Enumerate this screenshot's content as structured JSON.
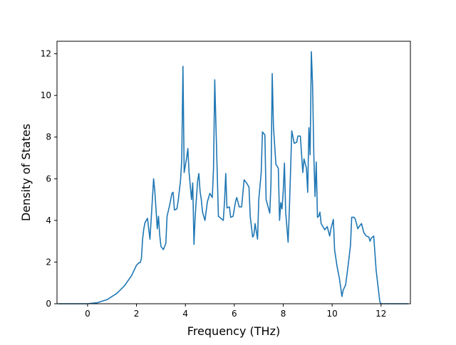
{
  "chart_data": {
    "type": "line",
    "title": "",
    "xlabel": "Frequency (THz)",
    "ylabel": "Density of States",
    "xlim": [
      -1.25,
      13.2
    ],
    "ylim": [
      0,
      12.6
    ],
    "x_ticks": [
      0,
      2,
      4,
      6,
      8,
      10,
      12
    ],
    "y_ticks": [
      0,
      2,
      4,
      6,
      8,
      10,
      12
    ],
    "grid": false,
    "legend": "none",
    "series": [
      {
        "color": "#1f77b4",
        "points": [
          [
            -1.2,
            0
          ],
          [
            0.0,
            0
          ],
          [
            0.4,
            0.05
          ],
          [
            0.8,
            0.2
          ],
          [
            1.2,
            0.5
          ],
          [
            1.5,
            0.85
          ],
          [
            1.8,
            1.35
          ],
          [
            2.0,
            1.85
          ],
          [
            2.1,
            1.97
          ],
          [
            2.15,
            1.97
          ],
          [
            2.2,
            2.15
          ],
          [
            2.25,
            3.1
          ],
          [
            2.3,
            3.6
          ],
          [
            2.35,
            3.9
          ],
          [
            2.45,
            4.1
          ],
          [
            2.55,
            3.1
          ],
          [
            2.65,
            5.0
          ],
          [
            2.7,
            6.0
          ],
          [
            2.75,
            5.4
          ],
          [
            2.85,
            3.6
          ],
          [
            2.9,
            4.2
          ],
          [
            2.95,
            3.3
          ],
          [
            3.0,
            2.75
          ],
          [
            3.1,
            2.6
          ],
          [
            3.2,
            2.9
          ],
          [
            3.25,
            4.2
          ],
          [
            3.35,
            4.7
          ],
          [
            3.45,
            5.3
          ],
          [
            3.5,
            5.35
          ],
          [
            3.55,
            4.5
          ],
          [
            3.65,
            4.55
          ],
          [
            3.7,
            4.9
          ],
          [
            3.8,
            5.9
          ],
          [
            3.85,
            6.9
          ],
          [
            3.9,
            11.4
          ],
          [
            3.95,
            6.3
          ],
          [
            4.05,
            7.0
          ],
          [
            4.1,
            7.45
          ],
          [
            4.15,
            6.3
          ],
          [
            4.25,
            5.0
          ],
          [
            4.3,
            5.8
          ],
          [
            4.35,
            2.85
          ],
          [
            4.4,
            4.2
          ],
          [
            4.5,
            5.9
          ],
          [
            4.55,
            6.25
          ],
          [
            4.6,
            5.4
          ],
          [
            4.65,
            5.0
          ],
          [
            4.7,
            4.4
          ],
          [
            4.8,
            4.0
          ],
          [
            4.9,
            4.9
          ],
          [
            5.0,
            5.3
          ],
          [
            5.1,
            5.1
          ],
          [
            5.15,
            6.5
          ],
          [
            5.2,
            10.75
          ],
          [
            5.25,
            8.5
          ],
          [
            5.35,
            4.2
          ],
          [
            5.45,
            4.1
          ],
          [
            5.55,
            4.0
          ],
          [
            5.6,
            4.9
          ],
          [
            5.65,
            6.25
          ],
          [
            5.7,
            4.6
          ],
          [
            5.8,
            4.65
          ],
          [
            5.85,
            4.15
          ],
          [
            5.95,
            4.2
          ],
          [
            6.05,
            4.9
          ],
          [
            6.1,
            5.1
          ],
          [
            6.2,
            4.65
          ],
          [
            6.3,
            4.65
          ],
          [
            6.4,
            5.95
          ],
          [
            6.5,
            5.8
          ],
          [
            6.6,
            5.6
          ],
          [
            6.65,
            4.2
          ],
          [
            6.75,
            3.2
          ],
          [
            6.8,
            3.3
          ],
          [
            6.85,
            3.85
          ],
          [
            6.95,
            3.1
          ],
          [
            7.0,
            5.0
          ],
          [
            7.1,
            6.3
          ],
          [
            7.15,
            8.25
          ],
          [
            7.25,
            8.1
          ],
          [
            7.3,
            5.0
          ],
          [
            7.45,
            4.35
          ],
          [
            7.5,
            5.8
          ],
          [
            7.55,
            11.05
          ],
          [
            7.6,
            8.5
          ],
          [
            7.7,
            6.7
          ],
          [
            7.8,
            6.5
          ],
          [
            7.85,
            4.0
          ],
          [
            7.9,
            4.85
          ],
          [
            7.95,
            4.55
          ],
          [
            8.0,
            5.4
          ],
          [
            8.05,
            6.75
          ],
          [
            8.1,
            4.4
          ],
          [
            8.2,
            2.95
          ],
          [
            8.25,
            4.5
          ],
          [
            8.35,
            8.3
          ],
          [
            8.45,
            7.7
          ],
          [
            8.55,
            7.75
          ],
          [
            8.6,
            8.05
          ],
          [
            8.7,
            8.05
          ],
          [
            8.8,
            6.3
          ],
          [
            8.85,
            6.95
          ],
          [
            8.95,
            6.5
          ],
          [
            9.0,
            5.35
          ],
          [
            9.05,
            8.45
          ],
          [
            9.1,
            7.15
          ],
          [
            9.15,
            12.1
          ],
          [
            9.2,
            10.5
          ],
          [
            9.25,
            7.2
          ],
          [
            9.3,
            5.15
          ],
          [
            9.35,
            6.8
          ],
          [
            9.4,
            4.15
          ],
          [
            9.45,
            4.2
          ],
          [
            9.5,
            4.4
          ],
          [
            9.55,
            3.85
          ],
          [
            9.65,
            3.65
          ],
          [
            9.7,
            3.55
          ],
          [
            9.8,
            3.7
          ],
          [
            9.9,
            3.25
          ],
          [
            9.95,
            3.6
          ],
          [
            10.05,
            4.05
          ],
          [
            10.1,
            2.6
          ],
          [
            10.2,
            1.8
          ],
          [
            10.3,
            1.2
          ],
          [
            10.4,
            0.35
          ],
          [
            10.45,
            0.65
          ],
          [
            10.55,
            0.9
          ],
          [
            10.65,
            1.8
          ],
          [
            10.75,
            2.8
          ],
          [
            10.8,
            4.15
          ],
          [
            10.9,
            4.15
          ],
          [
            10.95,
            4.05
          ],
          [
            11.05,
            3.6
          ],
          [
            11.1,
            3.7
          ],
          [
            11.2,
            3.85
          ],
          [
            11.3,
            3.4
          ],
          [
            11.4,
            3.25
          ],
          [
            11.5,
            3.2
          ],
          [
            11.55,
            3.0
          ],
          [
            11.6,
            3.15
          ],
          [
            11.7,
            3.25
          ],
          [
            11.8,
            1.6
          ],
          [
            11.9,
            0.6
          ],
          [
            11.95,
            0.1
          ],
          [
            12.0,
            0
          ],
          [
            13.1,
            0
          ]
        ]
      }
    ]
  }
}
